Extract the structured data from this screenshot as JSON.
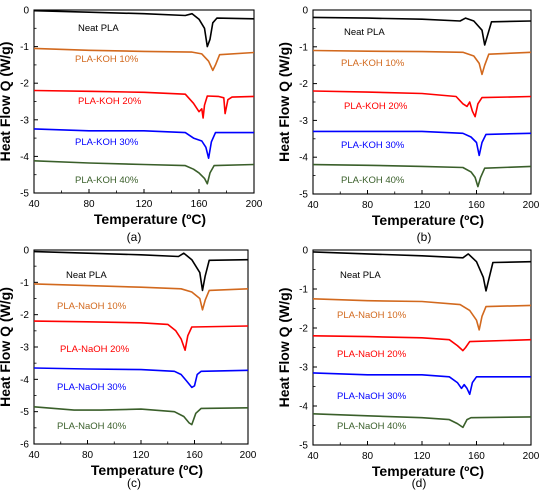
{
  "chart_data": [
    {
      "type": "line",
      "panel_label": "(a)",
      "xlabel": "Temperature (ºC)",
      "ylabel": "Heat Flow Q (W/g)",
      "xlim": [
        40,
        200
      ],
      "ylim": [
        -5,
        0
      ],
      "xticks": [
        "40",
        "80",
        "120",
        "160",
        "200"
      ],
      "yticks": [
        "0",
        "-1",
        "-2",
        "-3",
        "-4",
        "-5"
      ],
      "grid": false,
      "series": [
        {
          "name": "Neat PLA",
          "color": "#000000",
          "points": [
            [
              40,
              -0.02
            ],
            [
              80,
              -0.06
            ],
            [
              120,
              -0.1
            ],
            [
              150,
              -0.15
            ],
            [
              155,
              -0.1
            ],
            [
              160,
              -0.25
            ],
            [
              164,
              -0.5
            ],
            [
              166,
              -1.0
            ],
            [
              168,
              -0.8
            ],
            [
              170,
              -0.35
            ],
            [
              173,
              -0.22
            ],
            [
              200,
              -0.24
            ]
          ]
        },
        {
          "name": "PLA-KOH 10%",
          "color": "#d2691e",
          "points": [
            [
              40,
              -1.05
            ],
            [
              80,
              -1.1
            ],
            [
              120,
              -1.13
            ],
            [
              155,
              -1.15
            ],
            [
              162,
              -1.2
            ],
            [
              167,
              -1.4
            ],
            [
              170,
              -1.65
            ],
            [
              172,
              -1.5
            ],
            [
              175,
              -1.22
            ],
            [
              200,
              -1.16
            ]
          ]
        },
        {
          "name": "PLA-KOH 20%",
          "color": "#ff0000",
          "points": [
            [
              40,
              -2.2
            ],
            [
              80,
              -2.22
            ],
            [
              120,
              -2.25
            ],
            [
              150,
              -2.3
            ],
            [
              156,
              -2.55
            ],
            [
              160,
              -2.78
            ],
            [
              162,
              -2.7
            ],
            [
              163,
              -2.95
            ],
            [
              164,
              -2.6
            ],
            [
              166,
              -2.35
            ],
            [
              174,
              -2.36
            ],
            [
              178,
              -2.4
            ],
            [
              179,
              -2.83
            ],
            [
              181,
              -2.45
            ],
            [
              184,
              -2.38
            ],
            [
              200,
              -2.36
            ]
          ]
        },
        {
          "name": "PLA-KOH 30%",
          "color": "#0000ff",
          "points": [
            [
              40,
              -3.25
            ],
            [
              80,
              -3.3
            ],
            [
              120,
              -3.3
            ],
            [
              150,
              -3.35
            ],
            [
              156,
              -3.5
            ],
            [
              162,
              -3.58
            ],
            [
              165,
              -3.75
            ],
            [
              167,
              -4.05
            ],
            [
              169,
              -3.6
            ],
            [
              172,
              -3.35
            ],
            [
              200,
              -3.35
            ]
          ]
        },
        {
          "name": "PLA-KOH 40%",
          "color": "#3a5f2a",
          "points": [
            [
              40,
              -4.12
            ],
            [
              80,
              -4.18
            ],
            [
              120,
              -4.22
            ],
            [
              150,
              -4.25
            ],
            [
              156,
              -4.35
            ],
            [
              160,
              -4.45
            ],
            [
              164,
              -4.6
            ],
            [
              166,
              -4.75
            ],
            [
              168,
              -4.45
            ],
            [
              171,
              -4.25
            ],
            [
              200,
              -4.22
            ]
          ]
        }
      ]
    },
    {
      "type": "line",
      "panel_label": "(b)",
      "xlabel": "Temperature (ºC)",
      "ylabel": "Heat Flow Q (W/g)",
      "xlim": [
        40,
        200
      ],
      "ylim": [
        -5,
        0
      ],
      "xticks": [
        "40",
        "80",
        "120",
        "160",
        "200"
      ],
      "yticks": [
        "0",
        "-1",
        "-2",
        "-3",
        "-4",
        "-5"
      ],
      "grid": false,
      "series": [
        {
          "name": "Neat PLA",
          "color": "#000000",
          "points": [
            [
              40,
              -0.2
            ],
            [
              80,
              -0.22
            ],
            [
              120,
              -0.25
            ],
            [
              148,
              -0.3
            ],
            [
              152,
              -0.22
            ],
            [
              158,
              -0.3
            ],
            [
              164,
              -0.55
            ],
            [
              166,
              -0.95
            ],
            [
              168,
              -0.7
            ],
            [
              171,
              -0.32
            ],
            [
              200,
              -0.3
            ]
          ]
        },
        {
          "name": "PLA-KOH 10%",
          "color": "#d2691e",
          "points": [
            [
              40,
              -1.1
            ],
            [
              80,
              -1.12
            ],
            [
              120,
              -1.13
            ],
            [
              150,
              -1.15
            ],
            [
              158,
              -1.25
            ],
            [
              162,
              -1.45
            ],
            [
              164,
              -1.75
            ],
            [
              166,
              -1.5
            ],
            [
              169,
              -1.2
            ],
            [
              200,
              -1.15
            ]
          ]
        },
        {
          "name": "PLA-KOH 20%",
          "color": "#ff0000",
          "points": [
            [
              40,
              -2.2
            ],
            [
              80,
              -2.23
            ],
            [
              120,
              -2.27
            ],
            [
              145,
              -2.35
            ],
            [
              150,
              -2.55
            ],
            [
              153,
              -2.62
            ],
            [
              155,
              -2.5
            ],
            [
              157,
              -2.75
            ],
            [
              159,
              -2.9
            ],
            [
              161,
              -2.55
            ],
            [
              164,
              -2.38
            ],
            [
              200,
              -2.35
            ]
          ]
        },
        {
          "name": "PLA-KOH 30%",
          "color": "#0000ff",
          "points": [
            [
              40,
              -3.3
            ],
            [
              80,
              -3.3
            ],
            [
              120,
              -3.3
            ],
            [
              150,
              -3.35
            ],
            [
              156,
              -3.45
            ],
            [
              160,
              -3.6
            ],
            [
              162,
              -3.95
            ],
            [
              164,
              -3.6
            ],
            [
              167,
              -3.38
            ],
            [
              200,
              -3.35
            ]
          ]
        },
        {
          "name": "PLA-KOH 40%",
          "color": "#3a5f2a",
          "points": [
            [
              40,
              -4.2
            ],
            [
              80,
              -4.22
            ],
            [
              120,
              -4.25
            ],
            [
              150,
              -4.28
            ],
            [
              156,
              -4.4
            ],
            [
              159,
              -4.55
            ],
            [
              161,
              -4.8
            ],
            [
              163,
              -4.55
            ],
            [
              166,
              -4.3
            ],
            [
              200,
              -4.25
            ]
          ]
        }
      ]
    },
    {
      "type": "line",
      "panel_label": "(c)",
      "xlabel": "Temperature (ºC)",
      "ylabel": "Heat Flow Q (W/g)",
      "xlim": [
        40,
        200
      ],
      "ylim": [
        -6,
        0
      ],
      "xticks": [
        "40",
        "80",
        "120",
        "160",
        "200"
      ],
      "yticks": [
        "0",
        "-1",
        "-2",
        "-3",
        "-4",
        "-5",
        "-6"
      ],
      "grid": false,
      "series": [
        {
          "name": "Neat PLA",
          "color": "#000000",
          "points": [
            [
              40,
              -0.05
            ],
            [
              80,
              -0.1
            ],
            [
              120,
              -0.15
            ],
            [
              148,
              -0.2
            ],
            [
              152,
              -0.1
            ],
            [
              158,
              -0.3
            ],
            [
              164,
              -0.7
            ],
            [
              166,
              -1.25
            ],
            [
              168,
              -0.8
            ],
            [
              171,
              -0.32
            ],
            [
              200,
              -0.3
            ]
          ]
        },
        {
          "name": "PLA-NaOH 10%",
          "color": "#d2691e",
          "points": [
            [
              40,
              -1.05
            ],
            [
              80,
              -1.1
            ],
            [
              120,
              -1.15
            ],
            [
              150,
              -1.2
            ],
            [
              158,
              -1.3
            ],
            [
              164,
              -1.5
            ],
            [
              166,
              -1.85
            ],
            [
              168,
              -1.55
            ],
            [
              171,
              -1.25
            ],
            [
              200,
              -1.2
            ]
          ]
        },
        {
          "name": "PLA-NaOH 20%",
          "color": "#ff0000",
          "points": [
            [
              40,
              -2.2
            ],
            [
              80,
              -2.22
            ],
            [
              120,
              -2.25
            ],
            [
              140,
              -2.3
            ],
            [
              146,
              -2.5
            ],
            [
              150,
              -2.75
            ],
            [
              153,
              -3.1
            ],
            [
              155,
              -2.65
            ],
            [
              158,
              -2.38
            ],
            [
              200,
              -2.35
            ]
          ]
        },
        {
          "name": "PLA-NaOH 30%",
          "color": "#0000ff",
          "points": [
            [
              40,
              -3.65
            ],
            [
              80,
              -3.68
            ],
            [
              120,
              -3.7
            ],
            [
              145,
              -3.75
            ],
            [
              150,
              -3.85
            ],
            [
              154,
              -4.05
            ],
            [
              158,
              -4.25
            ],
            [
              160,
              -4.2
            ],
            [
              162,
              -3.85
            ],
            [
              165,
              -3.75
            ],
            [
              200,
              -3.72
            ]
          ]
        },
        {
          "name": "PLA-NaOH 40%",
          "color": "#3a5f2a",
          "points": [
            [
              40,
              -4.85
            ],
            [
              70,
              -4.95
            ],
            [
              90,
              -4.95
            ],
            [
              120,
              -4.92
            ],
            [
              145,
              -5.0
            ],
            [
              152,
              -5.15
            ],
            [
              156,
              -5.35
            ],
            [
              158,
              -5.4
            ],
            [
              161,
              -5.05
            ],
            [
              165,
              -4.9
            ],
            [
              200,
              -4.88
            ]
          ]
        }
      ]
    },
    {
      "type": "line",
      "panel_label": "(d)",
      "xlabel": "Temperature (ºC)",
      "ylabel": "Heat Flow Q (W/g)",
      "xlim": [
        40,
        200
      ],
      "ylim": [
        -5,
        0
      ],
      "xticks": [
        "40",
        "80",
        "120",
        "160",
        "200"
      ],
      "yticks": [
        "0",
        "-1",
        "-2",
        "-3",
        "-4",
        "-5"
      ],
      "grid": false,
      "series": [
        {
          "name": "Neat PLA",
          "color": "#000000",
          "points": [
            [
              40,
              -0.05
            ],
            [
              80,
              -0.1
            ],
            [
              120,
              -0.15
            ],
            [
              150,
              -0.2
            ],
            [
              154,
              -0.1
            ],
            [
              160,
              -0.3
            ],
            [
              165,
              -0.7
            ],
            [
              167,
              -1.05
            ],
            [
              169,
              -0.75
            ],
            [
              172,
              -0.32
            ],
            [
              200,
              -0.3
            ]
          ]
        },
        {
          "name": "PLA-NaOH 10%",
          "color": "#d2691e",
          "points": [
            [
              40,
              -1.25
            ],
            [
              80,
              -1.3
            ],
            [
              120,
              -1.32
            ],
            [
              148,
              -1.4
            ],
            [
              155,
              -1.55
            ],
            [
              160,
              -1.8
            ],
            [
              162,
              -2.05
            ],
            [
              164,
              -1.7
            ],
            [
              167,
              -1.45
            ],
            [
              200,
              -1.42
            ]
          ]
        },
        {
          "name": "PLA-NaOH 20%",
          "color": "#ff0000",
          "points": [
            [
              40,
              -2.2
            ],
            [
              80,
              -2.22
            ],
            [
              120,
              -2.25
            ],
            [
              140,
              -2.3
            ],
            [
              146,
              -2.45
            ],
            [
              150,
              -2.58
            ],
            [
              152,
              -2.5
            ],
            [
              155,
              -2.35
            ],
            [
              200,
              -2.3
            ]
          ]
        },
        {
          "name": "PLA-NaOH 30%",
          "color": "#0000ff",
          "points": [
            [
              40,
              -3.15
            ],
            [
              80,
              -3.2
            ],
            [
              120,
              -3.2
            ],
            [
              140,
              -3.25
            ],
            [
              146,
              -3.4
            ],
            [
              149,
              -3.55
            ],
            [
              151,
              -3.45
            ],
            [
              153,
              -3.55
            ],
            [
              155,
              -3.7
            ],
            [
              157,
              -3.4
            ],
            [
              160,
              -3.25
            ],
            [
              200,
              -3.25
            ]
          ]
        },
        {
          "name": "PLA-NaOH 40%",
          "color": "#3a5f2a",
          "points": [
            [
              40,
              -4.2
            ],
            [
              80,
              -4.25
            ],
            [
              120,
              -4.3
            ],
            [
              140,
              -4.35
            ],
            [
              146,
              -4.45
            ],
            [
              150,
              -4.55
            ],
            [
              153,
              -4.35
            ],
            [
              156,
              -4.3
            ],
            [
              200,
              -4.28
            ]
          ]
        }
      ]
    }
  ]
}
